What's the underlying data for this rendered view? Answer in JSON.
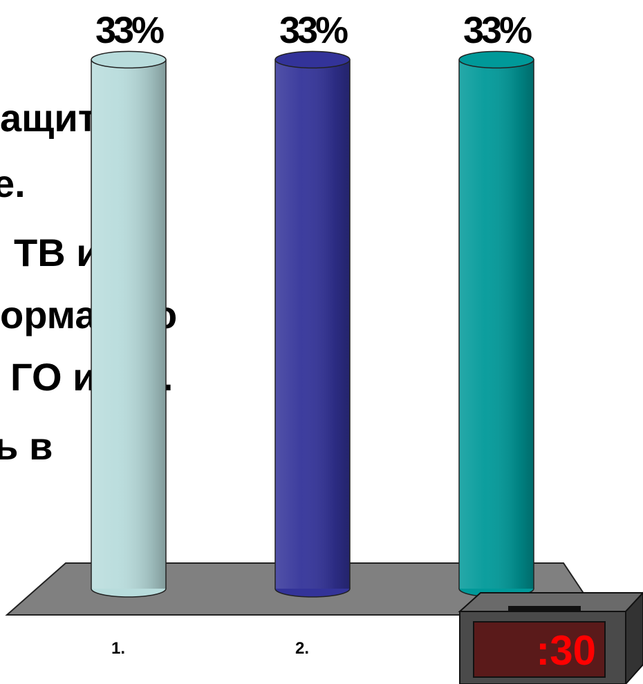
{
  "chart_data": {
    "type": "bar",
    "categories": [
      "1.",
      "2.",
      null
    ],
    "values": [
      33,
      33,
      33
    ],
    "value_labels": [
      "33%",
      "33%",
      "33%"
    ],
    "colors": [
      "#b8dcdc",
      "#333399",
      "#009999"
    ]
  },
  "slide_text": [
    "ащиты и",
    "е.",
    "ТВ и",
    "ормацию",
    "ГО и ЧС.",
    "ь в"
  ],
  "timer": ":30"
}
